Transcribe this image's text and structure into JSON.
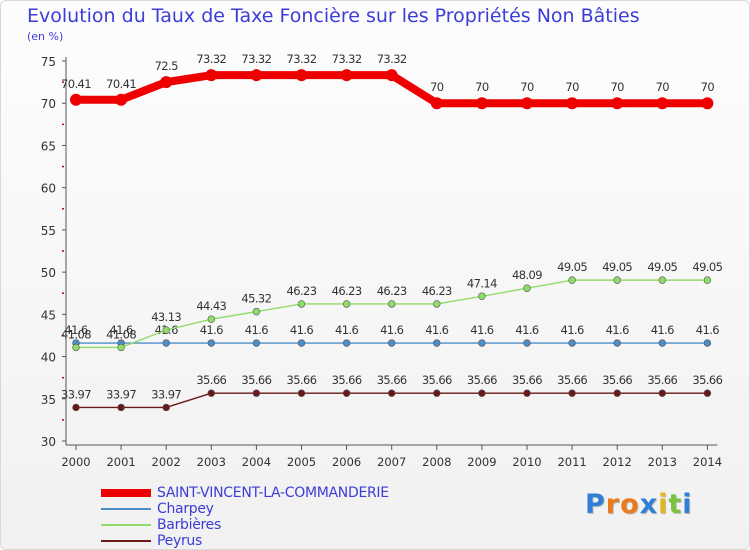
{
  "chart_data": {
    "type": "line",
    "title": "Evolution du Taux de Taxe Foncière sur les Propriétés Non Bâties",
    "ylabel": "(en %)",
    "xlabel": "",
    "ylim": [
      30,
      75
    ],
    "yticks": [
      30,
      35,
      40,
      45,
      50,
      55,
      60,
      65,
      70,
      75
    ],
    "grid": false,
    "categories": [
      "2000",
      "2001",
      "2002",
      "2003",
      "2004",
      "2005",
      "2006",
      "2007",
      "2008",
      "2009",
      "2010",
      "2011",
      "2012",
      "2013",
      "2014"
    ],
    "series": [
      {
        "name": "SAINT-VINCENT-LA-COMMANDERIE",
        "color": "#ee0000",
        "values": [
          70.41,
          70.41,
          72.5,
          73.32,
          73.32,
          73.32,
          73.32,
          73.32,
          70,
          70,
          70,
          70,
          70,
          70,
          70
        ],
        "labels": [
          "70.41",
          "70.41",
          "72.5",
          "73.32",
          "73.32",
          "73.32",
          "73.32",
          "73.32",
          "70",
          "70",
          "70",
          "70",
          "70",
          "70",
          "70"
        ]
      },
      {
        "name": "Charpey",
        "color": "#4d8ec7",
        "values": [
          41.6,
          41.6,
          41.6,
          41.6,
          41.6,
          41.6,
          41.6,
          41.6,
          41.6,
          41.6,
          41.6,
          41.6,
          41.6,
          41.6,
          41.6
        ],
        "labels": [
          "41.6",
          "41.6",
          "41.6",
          "41.6",
          "41.6",
          "41.6",
          "41.6",
          "41.6",
          "41.6",
          "41.6",
          "41.6",
          "41.6",
          "41.6",
          "41.6",
          "41.6"
        ]
      },
      {
        "name": "Barbières",
        "color": "#8fdc6a",
        "values": [
          41.08,
          41.08,
          43.13,
          44.43,
          45.32,
          46.23,
          46.23,
          46.23,
          46.23,
          47.14,
          48.09,
          49.05,
          49.05,
          49.05,
          49.05
        ],
        "labels": [
          "41.08",
          "41.08",
          "43.13",
          "44.43",
          "45.32",
          "46.23",
          "46.23",
          "46.23",
          "46.23",
          "47.14",
          "48.09",
          "49.05",
          "49.05",
          "49.05",
          "49.05"
        ]
      },
      {
        "name": "Peyrus",
        "color": "#6a1818",
        "values": [
          33.97,
          33.97,
          33.97,
          35.66,
          35.66,
          35.66,
          35.66,
          35.66,
          35.66,
          35.66,
          35.66,
          35.66,
          35.66,
          35.66,
          35.66
        ],
        "labels": [
          "33.97",
          "33.97",
          "33.97",
          "35.66",
          "35.66",
          "35.66",
          "35.66",
          "35.66",
          "35.66",
          "35.66",
          "35.66",
          "35.66",
          "35.66",
          "35.66",
          "35.66"
        ]
      }
    ]
  },
  "logo": {
    "letters": [
      "P",
      "r",
      "o",
      "x",
      "i",
      "t",
      "i"
    ],
    "colors": [
      "#2f7fd6",
      "#ea7a1c",
      "#ea7a1c",
      "#2f7fd6",
      "#e0b81a",
      "#7cc23e",
      "#2f7fd6"
    ]
  }
}
